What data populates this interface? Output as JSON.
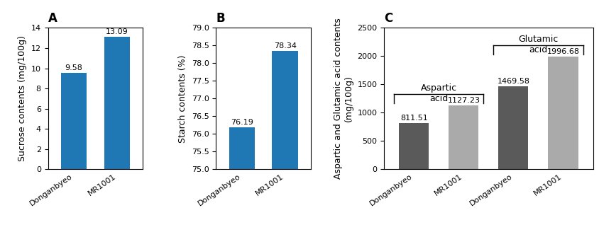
{
  "chart_data": [
    {
      "type": "bar",
      "title": "A",
      "categories": [
        "Donganbyeo",
        "MR1001"
      ],
      "values": [
        9.58,
        13.09
      ],
      "ylabel": "Sucrose contents (mg/100g)",
      "ylim": [
        0,
        14
      ],
      "yticks": [
        0,
        2,
        4,
        6,
        8,
        10,
        12,
        14
      ],
      "data_labels": true
    },
    {
      "type": "bar",
      "title": "B",
      "categories": [
        "Donganbyeo",
        "MR1001"
      ],
      "values": [
        76.19,
        78.34
      ],
      "ylabel": "Starch contents (%)",
      "ylim": [
        75,
        79
      ],
      "yticks": [
        {
          "value": 75,
          "label": "75.0"
        },
        75.5,
        {
          "value": 76,
          "label": "76.0"
        },
        76.5,
        {
          "value": 77,
          "label": "77.0"
        },
        77.5,
        {
          "value": 78,
          "label": "78.0"
        },
        78.5,
        {
          "value": 79,
          "label": "79.0"
        }
      ],
      "data_labels": true
    },
    {
      "type": "bar",
      "title": "C",
      "categories": [
        "Donganbyeo",
        "MR1001",
        "Donganbyeo",
        "MR1001"
      ],
      "values": [
        811.51,
        1127.23,
        1469.58,
        1996.68
      ],
      "colors": [
        "#5a5a5a",
        "#aaaaaa",
        "#5a5a5a",
        "#aaaaaa"
      ],
      "ylabel": "Aspartic and Glutamic acid contents\n(mg/100g)",
      "ylim": [
        0,
        2500
      ],
      "yticks": [
        0,
        500,
        1000,
        1500,
        2000,
        2500
      ],
      "data_labels": true,
      "annotations": [
        {
          "text": "Aspartic",
          "subtext": "acid",
          "bars": [
            0,
            1
          ]
        },
        {
          "text": "Glutamic",
          "subtext": "acid",
          "bars": [
            2,
            3
          ]
        }
      ]
    }
  ]
}
